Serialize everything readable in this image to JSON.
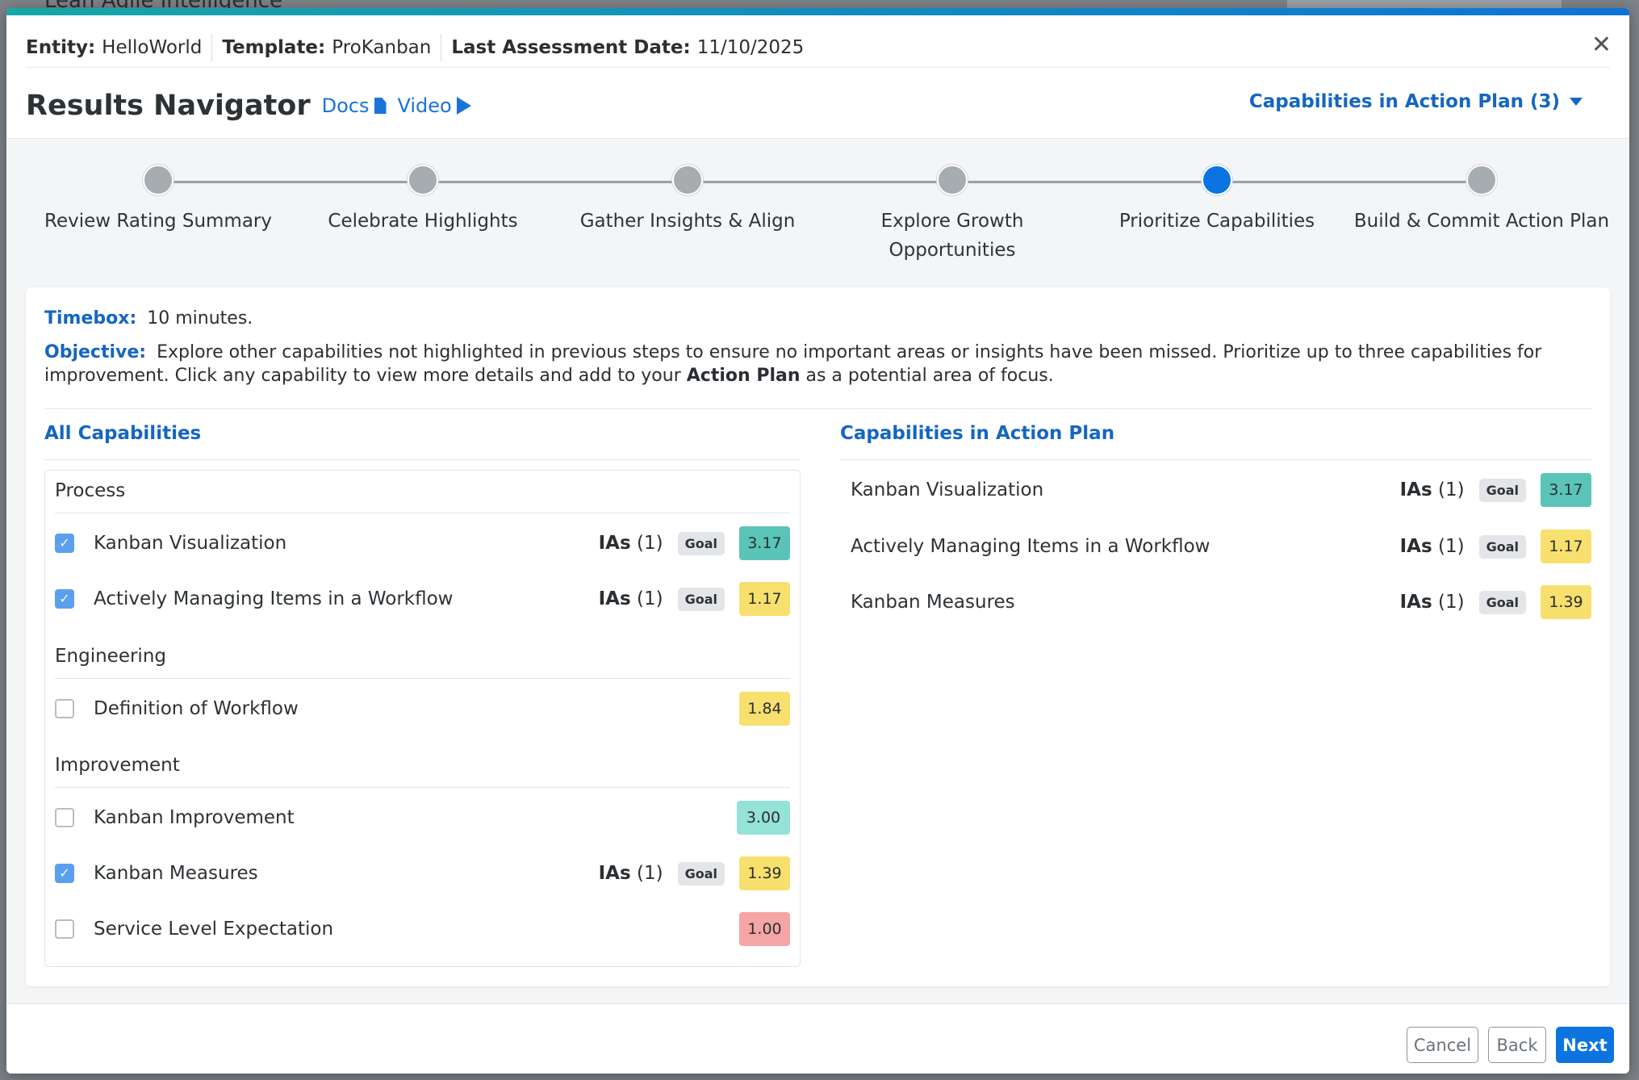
{
  "background": {
    "app_title": "Lean Agile Intelligence"
  },
  "meta": {
    "entity_label": "Entity:",
    "entity_value": "HelloWorld",
    "template_label": "Template:",
    "template_value": "ProKanban",
    "assessment_label": "Last Assessment Date:",
    "assessment_value": "11/10/2025"
  },
  "header": {
    "title": "Results Navigator",
    "docs_label": "Docs",
    "video_label": "Video",
    "action_plan_dropdown": "Capabilities in Action Plan (3)"
  },
  "steps": [
    {
      "label": "Review Rating Summary",
      "active": false
    },
    {
      "label": "Celebrate Highlights",
      "active": false
    },
    {
      "label": "Gather Insights & Align",
      "active": false
    },
    {
      "label": "Explore Growth Opportunities",
      "active": false
    },
    {
      "label": "Prioritize Capabilities",
      "active": true
    },
    {
      "label": "Build & Commit Action Plan",
      "active": false
    }
  ],
  "instructions": {
    "timebox_label": "Timebox:",
    "timebox_value": "10 minutes.",
    "objective_label": "Objective:",
    "objective_text_1": "Explore other capabilities not highlighted in previous steps to ensure no important areas or insights have been missed. Prioritize up to three capabilities for improvement. Click any capability to view more details and add to your",
    "objective_bold": "Action Plan",
    "objective_text_2": "as a potential area of focus."
  },
  "all_capabilities": {
    "title": "All Capabilities",
    "groups": [
      {
        "name": "Process"
      },
      {
        "name": "Engineering"
      },
      {
        "name": "Improvement"
      }
    ],
    "items": [
      {
        "name": "Kanban Visualization",
        "checked": true,
        "ias_label": "IAs",
        "ias_count": "(1)",
        "goal": "Goal",
        "score": "3.17",
        "score_color": "#5bc4b8"
      },
      {
        "name": "Actively Managing Items in a Workflow",
        "checked": true,
        "ias_label": "IAs",
        "ias_count": "(1)",
        "goal": "Goal",
        "score": "1.17",
        "score_color": "#f7e06e"
      },
      {
        "name": "Definition of Workflow",
        "checked": false,
        "score": "1.84",
        "score_color": "#f7e06e"
      },
      {
        "name": "Kanban Improvement",
        "checked": false,
        "score": "3.00",
        "score_color": "#95e3d6"
      },
      {
        "name": "Kanban Measures",
        "checked": true,
        "ias_label": "IAs",
        "ias_count": "(1)",
        "goal": "Goal",
        "score": "1.39",
        "score_color": "#f7e06e"
      },
      {
        "name": "Service Level Expectation",
        "checked": false,
        "score": "1.00",
        "score_color": "#f5a5a5"
      }
    ]
  },
  "action_plan": {
    "title": "Capabilities in Action Plan",
    "items": [
      {
        "name": "Kanban Visualization",
        "ias_label": "IAs",
        "ias_count": "(1)",
        "goal": "Goal",
        "score": "3.17",
        "score_color": "#5bc4b8"
      },
      {
        "name": "Actively Managing Items in a Workflow",
        "ias_label": "IAs",
        "ias_count": "(1)",
        "goal": "Goal",
        "score": "1.17",
        "score_color": "#f7e06e"
      },
      {
        "name": "Kanban Measures",
        "ias_label": "IAs",
        "ias_count": "(1)",
        "goal": "Goal",
        "score": "1.39",
        "score_color": "#f7e06e"
      }
    ]
  },
  "footer": {
    "cancel": "Cancel",
    "back": "Back",
    "next": "Next"
  }
}
